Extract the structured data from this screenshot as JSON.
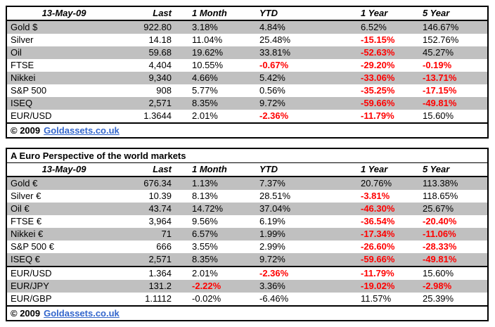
{
  "palette": {
    "negative_red": "#FF0000",
    "shaded_row_gray": "#C0C0C0",
    "link_blue": "#3366CC",
    "border_black": "#000000"
  },
  "tables": [
    {
      "header": {
        "date": "13-May-09",
        "cols": [
          "Last",
          "1 Month",
          "YTD",
          "1 Year",
          "5 Year"
        ]
      },
      "rows": [
        {
          "label": "Gold $",
          "shaded": true,
          "cells": [
            {
              "v": "922.80"
            },
            {
              "v": "3.18%"
            },
            {
              "v": "4.84%"
            },
            {
              "v": "6.52%"
            },
            {
              "v": "146.67%"
            }
          ]
        },
        {
          "label": "Silver",
          "shaded": false,
          "cells": [
            {
              "v": "14.18"
            },
            {
              "v": "11.04%"
            },
            {
              "v": "25.48%"
            },
            {
              "v": "-15.15%",
              "red": true
            },
            {
              "v": "152.76%"
            }
          ]
        },
        {
          "label": "Oil",
          "shaded": true,
          "cells": [
            {
              "v": "59.68"
            },
            {
              "v": "19.62%"
            },
            {
              "v": "33.81%"
            },
            {
              "v": "-52.63%",
              "red": true
            },
            {
              "v": "45.27%"
            }
          ]
        },
        {
          "label": "FTSE",
          "shaded": false,
          "cells": [
            {
              "v": "4,404"
            },
            {
              "v": "10.55%"
            },
            {
              "v": "-0.67%",
              "red": true
            },
            {
              "v": "-29.20%",
              "red": true
            },
            {
              "v": "-0.19%",
              "red": true
            }
          ]
        },
        {
          "label": "Nikkei",
          "shaded": true,
          "cells": [
            {
              "v": "9,340"
            },
            {
              "v": "4.66%"
            },
            {
              "v": "5.42%"
            },
            {
              "v": "-33.06%",
              "red": true
            },
            {
              "v": "-13.71%",
              "red": true
            }
          ]
        },
        {
          "label": "S&P 500",
          "shaded": false,
          "cells": [
            {
              "v": "908"
            },
            {
              "v": "5.77%"
            },
            {
              "v": "0.56%"
            },
            {
              "v": "-35.25%",
              "red": true
            },
            {
              "v": "-17.15%",
              "red": true
            }
          ]
        },
        {
          "label": "ISEQ",
          "shaded": true,
          "cells": [
            {
              "v": "2,571"
            },
            {
              "v": "8.35%"
            },
            {
              "v": "9.72%"
            },
            {
              "v": "-59.66%",
              "red": true
            },
            {
              "v": "-49.81%",
              "red": true
            }
          ]
        },
        {
          "label": "EUR/USD",
          "shaded": false,
          "cells": [
            {
              "v": "1.3644"
            },
            {
              "v": "2.01%"
            },
            {
              "v": "-2.36%",
              "red": true
            },
            {
              "v": "-11.79%",
              "red": true
            },
            {
              "v": "15.60%"
            }
          ]
        }
      ],
      "footer": {
        "prefix": "© 2009",
        "link": "Goldassets.co.uk"
      }
    },
    {
      "title": "A Euro Perspective of the world markets",
      "header": {
        "date": "13-May-09",
        "cols": [
          "Last",
          "1 Month",
          "YTD",
          "1 Year",
          "5 Year"
        ]
      },
      "market_rows": [
        {
          "label": "Gold €",
          "shaded": true,
          "cells": [
            {
              "v": "676.34"
            },
            {
              "v": "1.13%"
            },
            {
              "v": "7.37%"
            },
            {
              "v": "20.76%"
            },
            {
              "v": "113.38%"
            }
          ]
        },
        {
          "label": "Silver €",
          "shaded": false,
          "cells": [
            {
              "v": "10.39"
            },
            {
              "v": "8.13%"
            },
            {
              "v": "28.51%"
            },
            {
              "v": "-3.81%",
              "red": true
            },
            {
              "v": "118.65%"
            }
          ]
        },
        {
          "label": "Oil €",
          "shaded": true,
          "cells": [
            {
              "v": "43.74"
            },
            {
              "v": "14.72%"
            },
            {
              "v": "37.04%"
            },
            {
              "v": "-46.30%",
              "red": true
            },
            {
              "v": "25.67%"
            }
          ]
        },
        {
          "label": "FTSE €",
          "shaded": false,
          "cells": [
            {
              "v": "3,964"
            },
            {
              "v": "9.56%"
            },
            {
              "v": "6.19%"
            },
            {
              "v": "-36.54%",
              "red": true
            },
            {
              "v": "-20.40%",
              "red": true
            }
          ]
        },
        {
          "label": "Nikkei €",
          "shaded": true,
          "cells": [
            {
              "v": "71"
            },
            {
              "v": "6.57%"
            },
            {
              "v": "1.99%"
            },
            {
              "v": "-17.34%",
              "red": true
            },
            {
              "v": "-11.06%",
              "red": true
            }
          ]
        },
        {
          "label": "S&P 500 €",
          "shaded": false,
          "cells": [
            {
              "v": "666"
            },
            {
              "v": "3.55%"
            },
            {
              "v": "2.99%"
            },
            {
              "v": "-26.60%",
              "red": true
            },
            {
              "v": "-28.33%",
              "red": true
            }
          ]
        },
        {
          "label": "ISEQ €",
          "shaded": true,
          "cells": [
            {
              "v": "2,571"
            },
            {
              "v": "8.35%"
            },
            {
              "v": "9.72%"
            },
            {
              "v": "-59.66%",
              "red": true
            },
            {
              "v": "-49.81%",
              "red": true
            }
          ]
        }
      ],
      "fx_rows": [
        {
          "label": "EUR/USD",
          "shaded": false,
          "cells": [
            {
              "v": "1.364"
            },
            {
              "v": "2.01%"
            },
            {
              "v": "-2.36%",
              "red": true
            },
            {
              "v": "-11.79%",
              "red": true
            },
            {
              "v": "15.60%"
            }
          ]
        },
        {
          "label": "EUR/JPY",
          "shaded": true,
          "cells": [
            {
              "v": "131.2"
            },
            {
              "v": "-2.22%",
              "red": true
            },
            {
              "v": "3.36%"
            },
            {
              "v": "-19.02%",
              "red": true
            },
            {
              "v": "-2.98%",
              "red": true
            }
          ]
        },
        {
          "label": "EUR/GBP",
          "shaded": false,
          "cells": [
            {
              "v": "1.1112"
            },
            {
              "v": "-0.02%"
            },
            {
              "v": "-6.46%"
            },
            {
              "v": "11.57%"
            },
            {
              "v": "25.39%"
            }
          ]
        }
      ],
      "footer": {
        "prefix": "© 2009",
        "link": "Goldassets.co.uk"
      }
    }
  ]
}
